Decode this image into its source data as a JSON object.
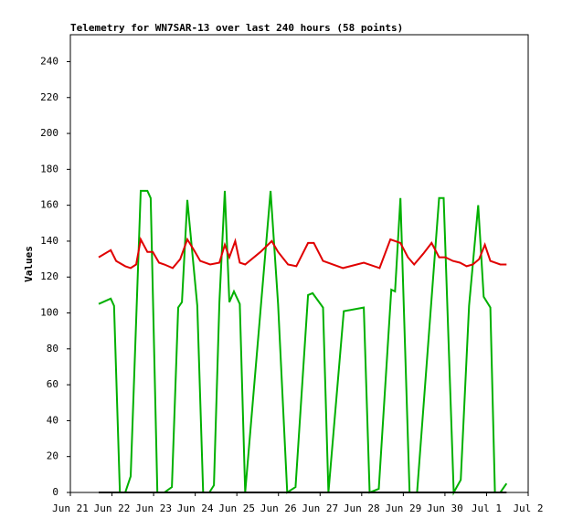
{
  "chart_data": {
    "type": "line",
    "title": "Telemetry for WN7SAR-13 over last 240 hours (58 points)",
    "y_label": "Values",
    "xlim": [
      0,
      11
    ],
    "xticks": [
      {
        "value": 0,
        "label": "Jun 21"
      },
      {
        "value": 1,
        "label": "Jun 22"
      },
      {
        "value": 2,
        "label": "Jun 23"
      },
      {
        "value": 3,
        "label": "Jun 24"
      },
      {
        "value": 4,
        "label": "Jun 25"
      },
      {
        "value": 5,
        "label": "Jun 26"
      },
      {
        "value": 6,
        "label": "Jun 27"
      },
      {
        "value": 7,
        "label": "Jun 28"
      },
      {
        "value": 8,
        "label": "Jun 29"
      },
      {
        "value": 9,
        "label": "Jun 30"
      },
      {
        "value": 10,
        "label": "Jul 1"
      },
      {
        "value": 11,
        "label": "Jul 2"
      }
    ],
    "ylim": [
      0,
      255
    ],
    "yticks": [
      0,
      20,
      40,
      60,
      80,
      100,
      120,
      140,
      160,
      180,
      200,
      220,
      240
    ],
    "grid": false,
    "series": [
      {
        "color": "#00b000",
        "x": [
          0.68,
          0.97,
          1.05,
          1.19,
          1.32,
          1.45,
          1.69,
          1.85,
          1.93,
          2.09,
          2.26,
          2.44,
          2.59,
          2.68,
          2.81,
          3.05,
          3.19,
          3.34,
          3.45,
          3.58,
          3.71,
          3.82,
          3.93,
          4.07,
          4.2,
          4.81,
          4.99,
          5.21,
          5.41,
          5.71,
          5.82,
          6.07,
          6.2,
          6.57,
          7.05,
          7.19,
          7.41,
          7.71,
          7.8,
          7.93,
          8.15,
          8.33,
          8.86,
          8.97,
          9.21,
          9.38,
          9.58,
          9.8,
          9.93,
          10.09,
          10.2,
          10.33,
          10.48
        ],
        "values": [
          105,
          108,
          104,
          0,
          0,
          9,
          168,
          168,
          164,
          0,
          0,
          3,
          103,
          106,
          163,
          104,
          0,
          0,
          4,
          106,
          168,
          106,
          112,
          105,
          0,
          168,
          105,
          0,
          3,
          110,
          111,
          103,
          0,
          101,
          103,
          0,
          2,
          113,
          112,
          164,
          0,
          0,
          164,
          164,
          0,
          7,
          104,
          160,
          109,
          103,
          0,
          0,
          5
        ]
      },
      {
        "color": "#e00000",
        "x": [
          0.68,
          0.97,
          1.1,
          1.32,
          1.45,
          1.58,
          1.69,
          1.85,
          1.98,
          2.13,
          2.26,
          2.46,
          2.64,
          2.81,
          2.97,
          3.12,
          3.36,
          3.58,
          3.71,
          3.82,
          3.96,
          4.07,
          4.2,
          4.57,
          4.84,
          4.99,
          5.23,
          5.43,
          5.71,
          5.85,
          6.07,
          6.55,
          7.05,
          7.43,
          7.69,
          7.93,
          8.11,
          8.26,
          8.48,
          8.68,
          8.86,
          9.01,
          9.19,
          9.36,
          9.52,
          9.67,
          9.82,
          9.96,
          10.09,
          10.33,
          10.48
        ],
        "values": [
          131,
          135,
          129,
          126,
          125,
          127,
          141,
          134,
          134,
          128,
          127,
          125,
          130,
          141,
          135,
          129,
          127,
          128,
          138,
          131,
          140,
          128,
          127,
          134,
          140,
          134,
          127,
          126,
          139,
          139,
          129,
          125,
          128,
          125,
          141,
          139,
          131,
          127,
          133,
          139,
          131,
          131,
          129,
          128,
          126,
          127,
          130,
          138,
          129,
          127,
          127
        ]
      },
      {
        "color": "#000000",
        "x": [
          0.68,
          10.48
        ],
        "values": [
          0,
          0
        ]
      }
    ]
  }
}
